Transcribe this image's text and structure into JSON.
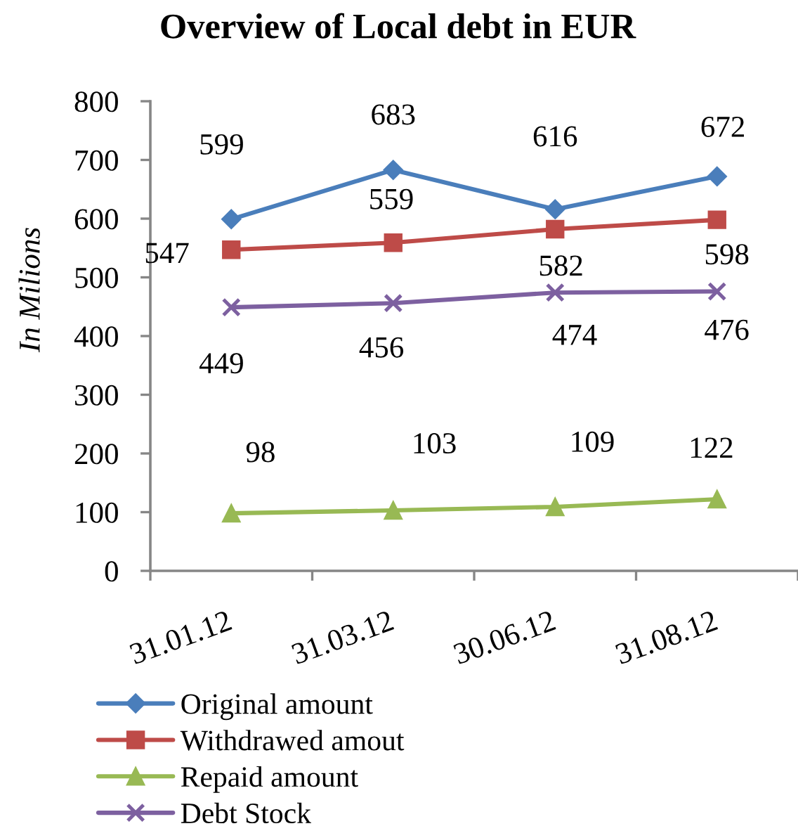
{
  "chart_data": {
    "type": "line",
    "title": "Overview of Local debt in EUR",
    "ylabel": "In Milions",
    "categories": [
      "31.01.12",
      "31.03.12",
      "30.06.12",
      "31.08.12"
    ],
    "series": [
      {
        "name": "Original amount",
        "color": "#4a7ebb",
        "marker": "diamond",
        "values": [
          599,
          683,
          616,
          672
        ]
      },
      {
        "name": "Withdrawed amout",
        "color": "#be4b48",
        "marker": "square",
        "values": [
          547,
          559,
          582,
          598
        ]
      },
      {
        "name": "Repaid amount",
        "color": "#98b954",
        "marker": "triangle",
        "values": [
          98,
          103,
          109,
          122
        ]
      },
      {
        "name": "Debt Stock",
        "color": "#7d60a0",
        "marker": "cross",
        "values": [
          449,
          456,
          474,
          476
        ]
      }
    ],
    "ylim": [
      0,
      800
    ],
    "yticks": [
      0,
      100,
      200,
      300,
      400,
      500,
      600,
      700,
      800
    ],
    "data_labels": true,
    "legend": "bottom",
    "line_style": "solid"
  }
}
